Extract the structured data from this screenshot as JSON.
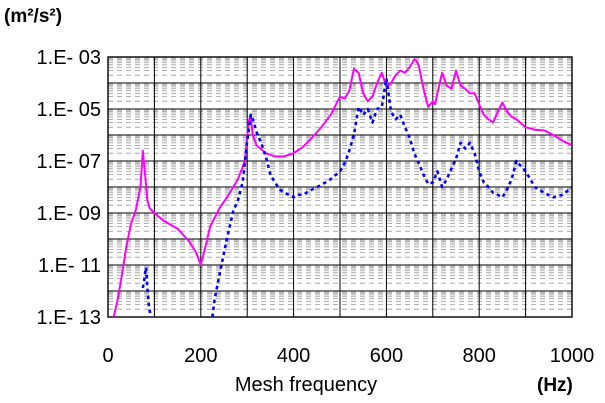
{
  "chart_data": {
    "type": "line",
    "y_unit": "(m²/s²)",
    "xlabel": "Mesh frequency",
    "x_unit": "(Hz)",
    "xlim": [
      0,
      1000
    ],
    "ylim": [
      1e-13,
      0.001
    ],
    "y_scale": "log",
    "grid": true,
    "x_tick_labels": [
      "0",
      "200",
      "400",
      "600",
      "800",
      "1000"
    ],
    "y_tick_labels": [
      "1.E- 03",
      "1.E- 05",
      "1.E- 07",
      "1.E- 09",
      "1.E- 11",
      "1.E- 13"
    ],
    "series": [
      {
        "color": "#ff00ff",
        "style": "solid",
        "x": [
          12,
          20,
          30,
          40,
          50,
          60,
          70,
          75,
          80,
          85,
          90,
          100,
          120,
          150,
          175,
          190,
          200,
          210,
          220,
          240,
          260,
          280,
          295,
          303,
          307,
          312,
          320,
          340,
          360,
          380,
          400,
          420,
          440,
          460,
          480,
          500,
          510,
          520,
          530,
          540,
          550,
          560,
          570,
          580,
          590,
          600,
          610,
          620,
          630,
          640,
          650,
          660,
          665,
          670,
          680,
          690,
          700,
          705,
          710,
          720,
          730,
          740,
          750,
          760,
          770,
          780,
          790,
          800,
          810,
          820,
          830,
          840,
          850,
          860,
          870,
          880,
          900,
          920,
          940,
          960,
          980,
          1000
        ],
        "y": [
          1e-13,
          4e-13,
          4e-12,
          6e-11,
          4e-10,
          1.3e-09,
          1e-08,
          2.5e-07,
          3e-08,
          3e-09,
          1.5e-09,
          1e-09,
          5e-10,
          2.5e-10,
          8e-11,
          3e-11,
          1e-11,
          5e-11,
          3e-10,
          1.5e-09,
          5e-09,
          2e-08,
          1e-07,
          3e-06,
          6e-06,
          1e-06,
          4e-07,
          2e-07,
          1.5e-07,
          1.5e-07,
          2e-07,
          3.5e-07,
          8e-07,
          2e-06,
          6e-06,
          3e-05,
          2.5e-05,
          5e-05,
          0.00035,
          0.00025,
          4e-05,
          2e-05,
          3e-05,
          0.0001,
          0.00025,
          7e-05,
          0.0001,
          0.0002,
          0.0003,
          0.00025,
          0.0004,
          0.0008,
          0.0007,
          0.00045,
          6e-05,
          1.2e-05,
          2e-05,
          1.5e-05,
          4e-05,
          0.00025,
          8e-05,
          6e-05,
          0.0003,
          8e-05,
          6e-05,
          4e-05,
          4e-05,
          1.5e-05,
          6e-06,
          4e-06,
          3e-06,
          8e-06,
          1.8e-05,
          8e-06,
          5e-06,
          4e-06,
          2e-06,
          1.6e-06,
          1.5e-06,
          1e-06,
          6e-07,
          4e-07
        ]
      },
      {
        "color": "#0000ff",
        "style": "dotted",
        "segments": [
          {
            "x": [
              75,
              78,
              80,
              82,
              85,
              88,
              92,
              96
            ],
            "y": [
              1.3e-12,
              2.5e-12,
              5e-12,
              8e-12,
              1.3e-12,
              3e-13,
              1e-13,
              5e-14
            ]
          },
          {
            "x": [
              225,
              230,
              240,
              250,
              260,
              270,
              280,
              290,
              300,
              308,
              312,
              320,
              330,
              340,
              350,
              360,
              370,
              380,
              390,
              400,
              410,
              420,
              440,
              460,
              480,
              500,
              510,
              520,
              530,
              540,
              550,
              560,
              570,
              580,
              590,
              600,
              610,
              620,
              630,
              640,
              650,
              660,
              670,
              680,
              690,
              700,
              710,
              720,
              730,
              740,
              750,
              760,
              770,
              780,
              790,
              800,
              810,
              820,
              830,
              840,
              850,
              860,
              870,
              880,
              900,
              920,
              940,
              960,
              980,
              1000
            ],
            "y": [
              1e-13,
              5e-13,
              4e-12,
              3e-11,
              2e-10,
              1.2e-09,
              3e-09,
              1.5e-08,
              6e-07,
              6e-06,
              4e-06,
              1.3e-06,
              5e-07,
              1.5e-07,
              3e-08,
              1.5e-08,
              8e-09,
              6e-09,
              5e-09,
              4e-09,
              5e-09,
              5e-09,
              8e-09,
              1.2e-08,
              2e-08,
              4e-08,
              8e-08,
              2.5e-07,
              1e-06,
              1.2e-05,
              6e-06,
              1e-05,
              3e-06,
              1e-05,
              1.2e-05,
              0.00015,
              8e-06,
              4e-06,
              6e-06,
              2e-06,
              8e-07,
              2e-07,
              8e-08,
              3e-08,
              1.3e-08,
              1.5e-08,
              4e-08,
              1e-08,
              2e-08,
              5e-08,
              1.2e-07,
              5e-07,
              3e-07,
              5e-07,
              2e-07,
              4e-08,
              1.5e-08,
              1e-08,
              6e-09,
              5e-09,
              4e-09,
              8e-09,
              2e-08,
              1e-07,
              4e-08,
              1e-08,
              6e-09,
              4e-09,
              5e-09,
              1e-08
            ]
          }
        ]
      }
    ]
  }
}
